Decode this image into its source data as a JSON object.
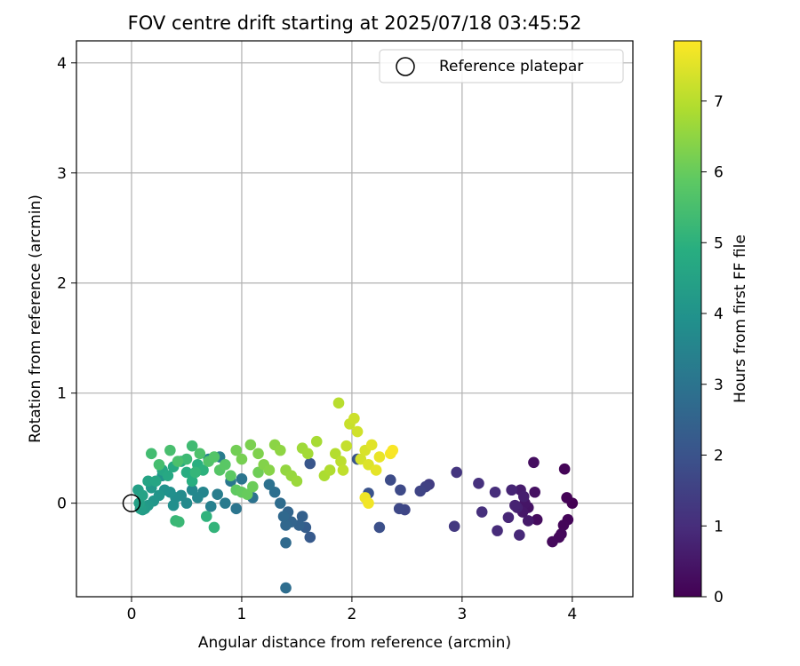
{
  "chart_data": {
    "type": "scatter",
    "title": "FOV centre drift starting at 2025/07/18 03:45:52",
    "xlabel": "Angular distance from reference (arcmin)",
    "ylabel": "Rotation from reference (arcmin)",
    "xlim": [
      -0.5,
      4.55
    ],
    "ylim": [
      -0.85,
      4.2
    ],
    "xticks": [
      "0",
      "1",
      "2",
      "3",
      "4"
    ],
    "yticks": [
      "0",
      "1",
      "2",
      "3",
      "4"
    ],
    "grid": true,
    "legend": {
      "placement": "top-right",
      "entries": [
        "Reference platepar"
      ]
    },
    "reference_point": {
      "x": 0,
      "y": 0
    },
    "colorbar": {
      "label": "Hours from first FF file",
      "colormap": "viridis",
      "range": [
        0,
        7.85
      ],
      "ticks": [
        "0",
        "1",
        "2",
        "3",
        "4",
        "5",
        "6",
        "7"
      ]
    },
    "points": [
      [
        4.0,
        0.0,
        0.0
      ],
      [
        3.95,
        0.05,
        0.05
      ],
      [
        3.93,
        0.31,
        0.08
      ],
      [
        3.96,
        -0.15,
        0.1
      ],
      [
        3.92,
        -0.2,
        0.12
      ],
      [
        3.9,
        -0.28,
        0.15
      ],
      [
        3.88,
        -0.31,
        0.18
      ],
      [
        3.82,
        -0.35,
        0.2
      ],
      [
        3.68,
        -0.15,
        0.25
      ],
      [
        3.65,
        0.37,
        0.3
      ],
      [
        3.66,
        0.1,
        0.35
      ],
      [
        3.6,
        -0.04,
        0.4
      ],
      [
        3.57,
        0.0,
        0.45
      ],
      [
        3.55,
        -0.08,
        0.5
      ],
      [
        3.6,
        -0.16,
        0.55
      ],
      [
        3.53,
        0.12,
        0.6
      ],
      [
        3.56,
        0.06,
        0.65
      ],
      [
        3.5,
        -0.04,
        0.7
      ],
      [
        3.48,
        -0.02,
        0.75
      ],
      [
        3.45,
        0.12,
        0.8
      ],
      [
        3.42,
        -0.13,
        0.85
      ],
      [
        3.52,
        -0.29,
        0.9
      ],
      [
        3.32,
        -0.25,
        0.95
      ],
      [
        3.3,
        0.1,
        1.0
      ],
      [
        3.18,
        -0.08,
        1.05
      ],
      [
        3.15,
        0.18,
        1.1
      ],
      [
        2.95,
        0.28,
        1.2
      ],
      [
        2.93,
        -0.21,
        1.3
      ],
      [
        2.7,
        0.17,
        1.4
      ],
      [
        2.67,
        0.15,
        1.5
      ],
      [
        2.62,
        0.11,
        1.6
      ],
      [
        2.48,
        -0.06,
        1.65
      ],
      [
        2.43,
        -0.05,
        1.7
      ],
      [
        2.44,
        0.12,
        1.75
      ],
      [
        2.35,
        0.21,
        1.8
      ],
      [
        2.25,
        -0.22,
        1.9
      ],
      [
        2.15,
        0.09,
        2.0
      ],
      [
        2.05,
        0.4,
        2.05
      ],
      [
        1.62,
        0.36,
        2.1
      ],
      [
        1.62,
        -0.31,
        2.2
      ],
      [
        1.58,
        -0.22,
        2.3
      ],
      [
        1.55,
        -0.12,
        2.4
      ],
      [
        1.52,
        -0.2,
        2.45
      ],
      [
        1.45,
        -0.17,
        2.5
      ],
      [
        1.42,
        -0.08,
        2.55
      ],
      [
        1.4,
        -0.2,
        2.6
      ],
      [
        1.38,
        -0.12,
        2.65
      ],
      [
        1.4,
        -0.36,
        2.7
      ],
      [
        1.35,
        0.0,
        2.75
      ],
      [
        1.4,
        -0.77,
        2.8
      ],
      [
        1.3,
        0.1,
        2.85
      ],
      [
        1.25,
        0.17,
        2.9
      ],
      [
        1.1,
        0.05,
        2.95
      ],
      [
        1.0,
        0.22,
        3.0
      ],
      [
        0.95,
        -0.05,
        3.05
      ],
      [
        0.9,
        0.2,
        3.1
      ],
      [
        0.85,
        0.0,
        3.2
      ],
      [
        0.8,
        0.42,
        3.25
      ],
      [
        0.78,
        0.08,
        3.3
      ],
      [
        0.72,
        -0.03,
        3.4
      ],
      [
        0.7,
        0.4,
        3.5
      ],
      [
        0.65,
        0.1,
        3.55
      ],
      [
        0.6,
        0.05,
        3.6
      ],
      [
        0.55,
        0.12,
        3.65
      ],
      [
        0.5,
        0.0,
        3.7
      ],
      [
        0.45,
        0.07,
        3.75
      ],
      [
        0.4,
        0.05,
        3.8
      ],
      [
        0.38,
        -0.02,
        3.85
      ],
      [
        0.35,
        0.1,
        3.9
      ],
      [
        0.3,
        0.12,
        3.95
      ],
      [
        0.28,
        0.25,
        4.0
      ],
      [
        0.25,
        0.07,
        4.05
      ],
      [
        0.2,
        0.02,
        4.1
      ],
      [
        0.18,
        0.14,
        4.15
      ],
      [
        0.15,
        -0.02,
        4.2
      ],
      [
        0.12,
        -0.05,
        4.25
      ],
      [
        0.1,
        -0.06,
        4.3
      ],
      [
        0.08,
        -0.05,
        4.35
      ],
      [
        0.06,
        0.12,
        4.4
      ],
      [
        0.07,
        0.0,
        4.45
      ],
      [
        0.1,
        0.07,
        4.5
      ],
      [
        0.15,
        0.2,
        4.55
      ],
      [
        0.22,
        0.2,
        4.6
      ],
      [
        0.28,
        0.3,
        4.65
      ],
      [
        0.33,
        0.25,
        4.7
      ],
      [
        0.38,
        0.33,
        4.75
      ],
      [
        0.45,
        0.38,
        4.8
      ],
      [
        0.5,
        0.28,
        4.85
      ],
      [
        0.55,
        0.2,
        4.9
      ],
      [
        0.6,
        0.35,
        4.95
      ],
      [
        0.65,
        0.3,
        5.0
      ],
      [
        0.68,
        -0.12,
        5.05
      ],
      [
        0.75,
        -0.22,
        5.1
      ],
      [
        0.58,
        0.28,
        5.15
      ],
      [
        0.4,
        -0.16,
        5.2
      ],
      [
        0.43,
        -0.17,
        5.25
      ],
      [
        0.5,
        0.4,
        5.3
      ],
      [
        0.55,
        0.52,
        5.35
      ],
      [
        0.18,
        0.45,
        5.4
      ],
      [
        0.25,
        0.35,
        5.45
      ],
      [
        0.35,
        0.48,
        5.5
      ],
      [
        0.42,
        0.38,
        5.55
      ],
      [
        0.62,
        0.45,
        5.6
      ],
      [
        0.7,
        0.38,
        5.65
      ],
      [
        0.75,
        0.42,
        5.7
      ],
      [
        0.8,
        0.3,
        5.75
      ],
      [
        0.85,
        0.35,
        5.8
      ],
      [
        0.9,
        0.25,
        5.85
      ],
      [
        0.95,
        0.12,
        5.9
      ],
      [
        1.0,
        0.1,
        5.95
      ],
      [
        1.05,
        0.08,
        6.0
      ],
      [
        1.1,
        0.15,
        6.05
      ],
      [
        1.15,
        0.28,
        6.1
      ],
      [
        0.95,
        0.48,
        6.15
      ],
      [
        1.0,
        0.4,
        6.2
      ],
      [
        1.08,
        0.53,
        6.25
      ],
      [
        1.15,
        0.45,
        6.3
      ],
      [
        1.2,
        0.35,
        6.35
      ],
      [
        1.25,
        0.3,
        6.4
      ],
      [
        1.3,
        0.53,
        6.45
      ],
      [
        1.35,
        0.48,
        6.5
      ],
      [
        1.4,
        0.3,
        6.55
      ],
      [
        1.45,
        0.25,
        6.6
      ],
      [
        1.5,
        0.2,
        6.65
      ],
      [
        1.55,
        0.5,
        6.7
      ],
      [
        1.6,
        0.45,
        6.75
      ],
      [
        1.68,
        0.56,
        6.8
      ],
      [
        1.75,
        0.25,
        6.85
      ],
      [
        1.8,
        0.3,
        6.9
      ],
      [
        1.85,
        0.45,
        6.95
      ],
      [
        1.88,
        0.91,
        7.0
      ],
      [
        1.9,
        0.38,
        7.05
      ],
      [
        1.92,
        0.3,
        7.1
      ],
      [
        1.95,
        0.52,
        7.15
      ],
      [
        1.98,
        0.72,
        7.2
      ],
      [
        2.02,
        0.77,
        7.25
      ],
      [
        2.05,
        0.65,
        7.3
      ],
      [
        2.08,
        0.4,
        7.35
      ],
      [
        2.12,
        0.48,
        7.4
      ],
      [
        2.15,
        0.35,
        7.45
      ],
      [
        2.18,
        0.53,
        7.5
      ],
      [
        2.22,
        0.3,
        7.55
      ],
      [
        2.25,
        0.42,
        7.6
      ],
      [
        2.12,
        0.05,
        7.65
      ],
      [
        2.15,
        0.0,
        7.7
      ],
      [
        2.35,
        0.45,
        7.75
      ],
      [
        2.37,
        0.48,
        7.8
      ]
    ]
  }
}
